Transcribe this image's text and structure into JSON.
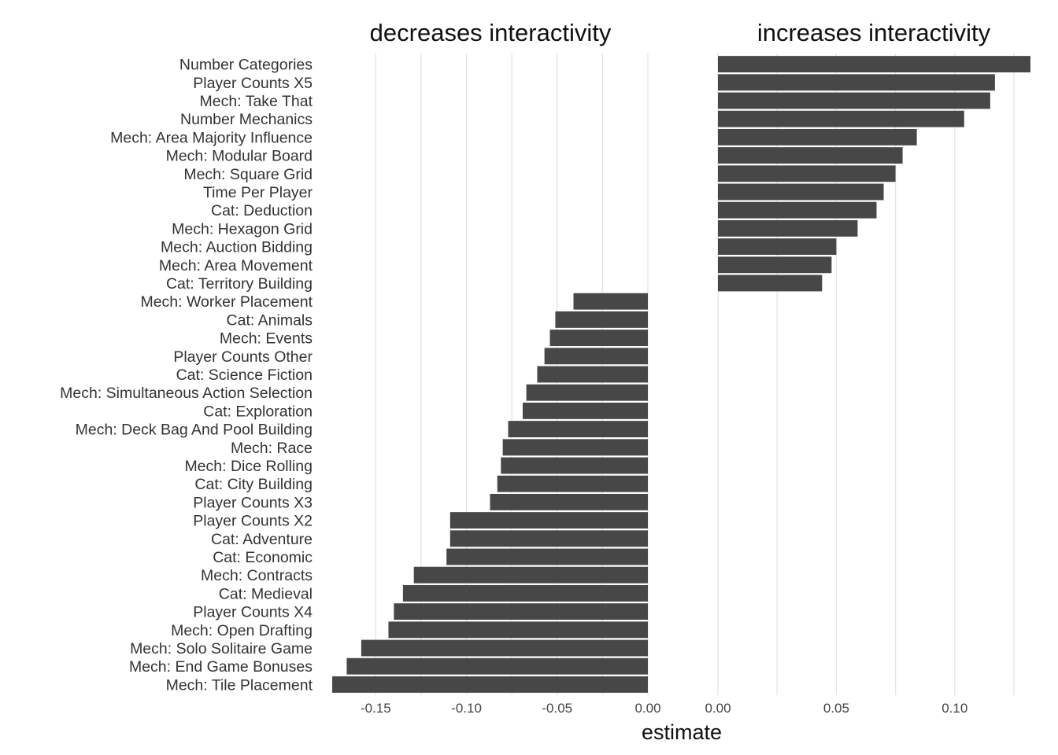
{
  "chart_data": {
    "type": "bar",
    "orientation": "horizontal",
    "xlabel": "estimate",
    "bar_color": "#474747",
    "grid_color": "#e3e3e3",
    "categories": [
      "Number Categories",
      "Player Counts X5",
      "Mech: Take That",
      "Number Mechanics",
      "Mech: Area Majority Influence",
      "Mech: Modular Board",
      "Mech: Square Grid",
      "Time Per Player",
      "Cat: Deduction",
      "Mech: Hexagon Grid",
      "Mech: Auction Bidding",
      "Mech: Area Movement",
      "Cat: Territory Building",
      "Mech: Worker Placement",
      "Cat: Animals",
      "Mech: Events",
      "Player Counts Other",
      "Cat: Science Fiction",
      "Mech: Simultaneous Action Selection",
      "Cat: Exploration",
      "Mech: Deck Bag And Pool Building",
      "Mech: Race",
      "Mech: Dice Rolling",
      "Cat: City Building",
      "Player Counts X3",
      "Player Counts X2",
      "Cat: Adventure",
      "Cat: Economic",
      "Mech: Contracts",
      "Cat: Medieval",
      "Player Counts X4",
      "Mech: Open Drafting",
      "Mech: Solo Solitaire Game",
      "Mech: End Game Bonuses",
      "Mech: Tile Placement"
    ],
    "panels": [
      {
        "title": "decreases interactivity",
        "xlim": [
          -0.174,
          0.0
        ],
        "ticks": [
          "-0.15",
          "-0.10",
          "-0.05",
          "0.00"
        ],
        "tick_values": [
          -0.15,
          -0.1,
          -0.05,
          0.0
        ],
        "categories": [
          "Mech: Worker Placement",
          "Cat: Animals",
          "Mech: Events",
          "Player Counts Other",
          "Cat: Science Fiction",
          "Mech: Simultaneous Action Selection",
          "Cat: Exploration",
          "Mech: Deck Bag And Pool Building",
          "Mech: Race",
          "Mech: Dice Rolling",
          "Cat: City Building",
          "Player Counts X3",
          "Player Counts X2",
          "Cat: Adventure",
          "Cat: Economic",
          "Mech: Contracts",
          "Cat: Medieval",
          "Player Counts X4",
          "Mech: Open Drafting",
          "Mech: Solo Solitaire Game",
          "Mech: End Game Bonuses",
          "Mech: Tile Placement"
        ],
        "values": [
          -0.041,
          -0.051,
          -0.054,
          -0.057,
          -0.061,
          -0.067,
          -0.069,
          -0.077,
          -0.08,
          -0.081,
          -0.083,
          -0.087,
          -0.109,
          -0.109,
          -0.111,
          -0.129,
          -0.135,
          -0.14,
          -0.143,
          -0.158,
          -0.166,
          -0.174
        ]
      },
      {
        "title": "increases interactivity",
        "xlim": [
          0.0,
          0.132
        ],
        "ticks": [
          "0.00",
          "0.05",
          "0.10"
        ],
        "tick_values": [
          0.0,
          0.05,
          0.1
        ],
        "categories": [
          "Number Categories",
          "Player Counts X5",
          "Mech: Take That",
          "Number Mechanics",
          "Mech: Area Majority Influence",
          "Mech: Modular Board",
          "Mech: Square Grid",
          "Time Per Player",
          "Cat: Deduction",
          "Mech: Hexagon Grid",
          "Mech: Auction Bidding",
          "Mech: Area Movement",
          "Cat: Territory Building"
        ],
        "values": [
          0.132,
          0.117,
          0.115,
          0.104,
          0.084,
          0.078,
          0.075,
          0.07,
          0.067,
          0.059,
          0.05,
          0.048,
          0.044
        ]
      }
    ]
  }
}
